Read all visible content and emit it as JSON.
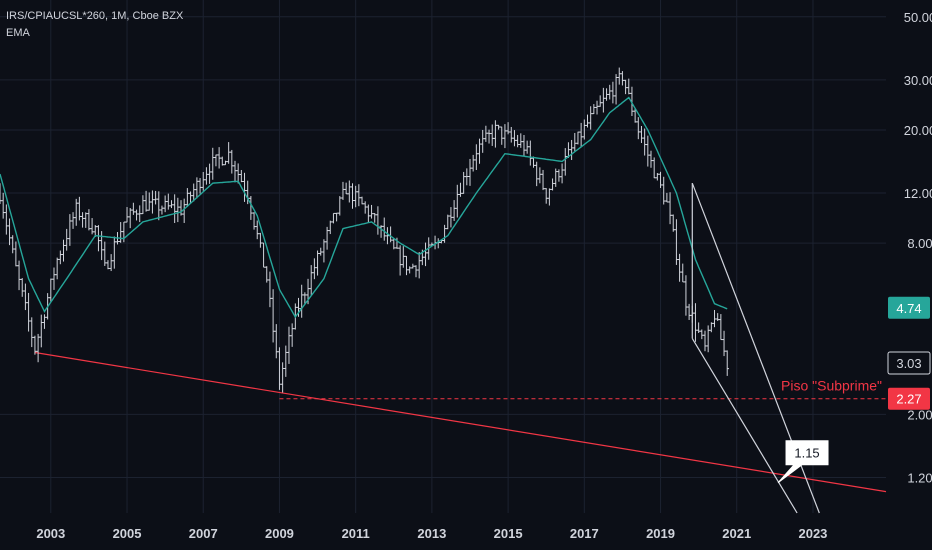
{
  "header": {
    "symbol_line": "IRS/CPIAUCSL*260, 1M, Cboe BZX",
    "indicator": "EMA"
  },
  "colors": {
    "background": "#0c0f17",
    "grid": "#1c2230",
    "bars": "#d1d4dc",
    "ema": "#26a69a",
    "trendline": "#f23645",
    "channel": "#d1d4dc",
    "badge_current": "#26a69a",
    "badge_red": "#f23645"
  },
  "chart_data": {
    "type": "ohlc",
    "scale": "log",
    "grid": true,
    "title": "IRS/CPIAUCSL*260, 1M, Cboe BZX",
    "y_ticks": [
      "50.00",
      "30.00",
      "20.00",
      "12.00",
      "8.00",
      "2.00",
      "1.20"
    ],
    "x_ticks": [
      "2003",
      "2005",
      "2007",
      "2009",
      "2011",
      "2013",
      "2015",
      "2017",
      "2019",
      "2021",
      "2023"
    ],
    "xlim": [
      "2001-09",
      "2024-12"
    ],
    "ylim": [
      0.9,
      55
    ],
    "price_path": [
      {
        "date": "2001-09",
        "value": 12.0
      },
      {
        "date": "2002-02",
        "value": 6.5
      },
      {
        "date": "2002-08",
        "value": 3.4
      },
      {
        "date": "2003-03",
        "value": 7.0
      },
      {
        "date": "2003-09",
        "value": 10.5
      },
      {
        "date": "2004-03",
        "value": 9.0
      },
      {
        "date": "2004-06",
        "value": 6.5
      },
      {
        "date": "2004-12",
        "value": 9.5
      },
      {
        "date": "2005-06",
        "value": 11.0
      },
      {
        "date": "2006-06",
        "value": 10.5
      },
      {
        "date": "2007-03",
        "value": 15.0
      },
      {
        "date": "2007-09",
        "value": 16.5
      },
      {
        "date": "2008-03",
        "value": 12.0
      },
      {
        "date": "2008-09",
        "value": 6.0
      },
      {
        "date": "2009-01",
        "value": 2.6
      },
      {
        "date": "2009-06",
        "value": 4.5
      },
      {
        "date": "2010-03",
        "value": 8.0
      },
      {
        "date": "2010-10",
        "value": 12.5
      },
      {
        "date": "2011-06",
        "value": 10.0
      },
      {
        "date": "2012-01",
        "value": 7.5
      },
      {
        "date": "2012-06",
        "value": 6.5
      },
      {
        "date": "2013-03",
        "value": 8.0
      },
      {
        "date": "2013-09",
        "value": 12.0
      },
      {
        "date": "2014-03",
        "value": 17.0
      },
      {
        "date": "2014-09",
        "value": 20.0
      },
      {
        "date": "2015-06",
        "value": 17.5
      },
      {
        "date": "2016-01",
        "value": 12.0
      },
      {
        "date": "2016-06",
        "value": 15.0
      },
      {
        "date": "2017-03",
        "value": 22.0
      },
      {
        "date": "2017-09",
        "value": 27.0
      },
      {
        "date": "2018-01",
        "value": 31.0
      },
      {
        "date": "2018-06",
        "value": 20.0
      },
      {
        "date": "2019-03",
        "value": 11.0
      },
      {
        "date": "2019-09",
        "value": 5.0
      },
      {
        "date": "2020-03",
        "value": 3.4
      },
      {
        "date": "2020-06",
        "value": 4.5
      },
      {
        "date": "2020-10",
        "value": 3.0
      }
    ],
    "ema_path": [
      {
        "date": "2001-09",
        "value": 14.0
      },
      {
        "date": "2002-06",
        "value": 6.0
      },
      {
        "date": "2002-11",
        "value": 4.6
      },
      {
        "date": "2003-06",
        "value": 6.0
      },
      {
        "date": "2004-03",
        "value": 8.5
      },
      {
        "date": "2004-12",
        "value": 8.3
      },
      {
        "date": "2005-06",
        "value": 9.5
      },
      {
        "date": "2006-06",
        "value": 10.3
      },
      {
        "date": "2007-04",
        "value": 13.0
      },
      {
        "date": "2007-12",
        "value": 13.2
      },
      {
        "date": "2008-06",
        "value": 10.0
      },
      {
        "date": "2009-01",
        "value": 5.5
      },
      {
        "date": "2009-06",
        "value": 4.4
      },
      {
        "date": "2010-03",
        "value": 6.0
      },
      {
        "date": "2010-09",
        "value": 9.0
      },
      {
        "date": "2011-06",
        "value": 9.5
      },
      {
        "date": "2012-03",
        "value": 8.0
      },
      {
        "date": "2012-09",
        "value": 7.3
      },
      {
        "date": "2013-06",
        "value": 8.5
      },
      {
        "date": "2014-03",
        "value": 12.0
      },
      {
        "date": "2014-12",
        "value": 16.5
      },
      {
        "date": "2015-09",
        "value": 16.0
      },
      {
        "date": "2016-06",
        "value": 15.5
      },
      {
        "date": "2017-03",
        "value": 18.5
      },
      {
        "date": "2017-09",
        "value": 23.0
      },
      {
        "date": "2018-03",
        "value": 26.0
      },
      {
        "date": "2018-09",
        "value": 20.0
      },
      {
        "date": "2019-06",
        "value": 12.0
      },
      {
        "date": "2019-12",
        "value": 7.0
      },
      {
        "date": "2020-06",
        "value": 4.9
      },
      {
        "date": "2020-10",
        "value": 4.7
      }
    ],
    "trendline": {
      "from": {
        "date": "2002-08",
        "value": 3.3
      },
      "to": {
        "date": "2024-12",
        "value": 1.07
      }
    },
    "floor_line": {
      "from": {
        "date": "2009-01",
        "value": 2.27
      },
      "to": {
        "date": "2024-12",
        "value": 2.27
      }
    },
    "channel": {
      "upper": {
        "from": {
          "date": "2019-11",
          "value": 13.0
        },
        "to": {
          "date": "2023-03",
          "value": 0.9
        }
      },
      "lower": {
        "from": {
          "date": "2019-11",
          "value": 3.7
        },
        "to": {
          "date": "2022-08",
          "value": 0.9
        }
      }
    },
    "annotations": {
      "floor_label": "Piso \"Subprime\"",
      "callout": {
        "text": "1.15",
        "date": "2022-02",
        "value": 1.15
      }
    },
    "price_badges": [
      {
        "text": "4.74",
        "value": 4.74,
        "style": "current"
      },
      {
        "text": "3.03",
        "value": 3.03,
        "style": "outline"
      },
      {
        "text": "2.27",
        "value": 2.27,
        "style": "red"
      }
    ]
  }
}
